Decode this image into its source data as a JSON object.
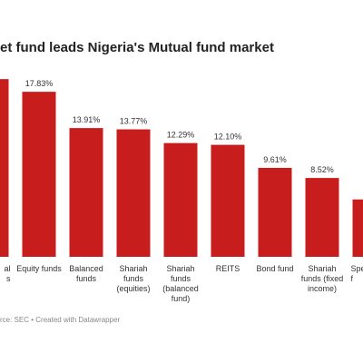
{
  "chart_data": {
    "type": "bar",
    "title": "et fund leads Nigeria's Mutual fund market",
    "source": "rce: SEC • Created with Datawrapper",
    "categories": [
      "al\ns",
      "Equity funds",
      "Balanced\nfunds",
      "Shariah\nfunds\n(equities)",
      "Shariah\nfunds\n(balanced\nfund)",
      "REITS",
      "Bond fund",
      "Shariah\nfunds (fixed\nincome)",
      "Spe\nf"
    ],
    "values": [
      19.2,
      17.83,
      13.91,
      13.77,
      12.29,
      12.1,
      9.61,
      8.52,
      6.2
    ],
    "value_labels": [
      null,
      "17.83%",
      "13.91%",
      "13.77%",
      "12.29%",
      "12.10%",
      "9.61%",
      "8.52%",
      null
    ],
    "color": "#c71e1d"
  }
}
